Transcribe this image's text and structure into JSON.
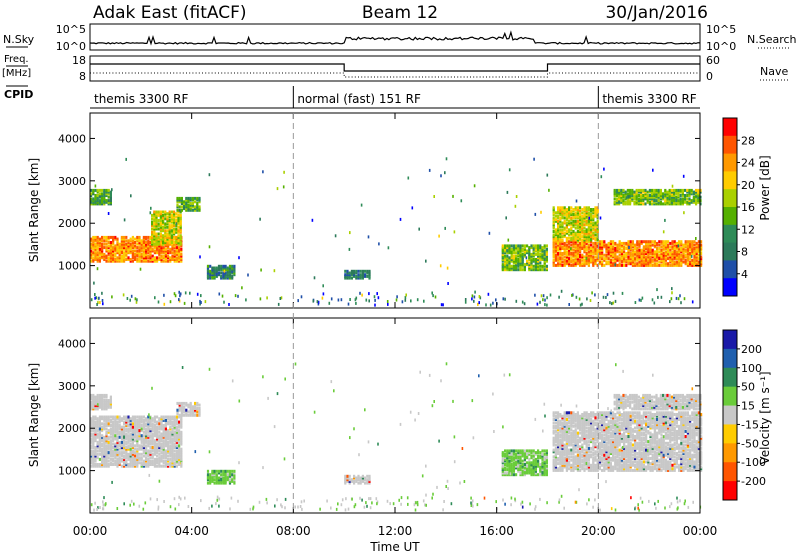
{
  "header": {
    "station": "Adak East (fitACF)",
    "beam": "Beam 12",
    "date": "30/Jan/2016"
  },
  "nsky": {
    "left_label": "N.Sky",
    "right_label": "N.Search",
    "left_ticks": [
      "10^5",
      "10^0"
    ],
    "right_ticks": [
      "10^5",
      "10^0"
    ]
  },
  "freq": {
    "left_label_line1": "Freq.",
    "left_label_line2": "[MHz]",
    "right_label": "Nave",
    "left_ticks": [
      "18",
      "8"
    ],
    "right_ticks": [
      "60",
      "0"
    ]
  },
  "cpid": {
    "label": "CPID",
    "segments": [
      {
        "text": "themis 3300 RF",
        "start_hour": 0,
        "end_hour": 8
      },
      {
        "text": "normal (fast) 151 RF",
        "start_hour": 8,
        "end_hour": 20
      },
      {
        "text": "themis 3300 RF",
        "start_hour": 20,
        "end_hour": 24
      }
    ]
  },
  "axes": {
    "ylabel": "Slant Range [km]",
    "xlabel": "Time UT",
    "x_tick_labels": [
      "00:00",
      "04:00",
      "08:00",
      "12:00",
      "16:00",
      "20:00",
      "00:00"
    ],
    "y_tick_labels": [
      "1000",
      "2000",
      "3000",
      "4000"
    ]
  },
  "colorbars": {
    "power": {
      "label": "Power [dB]",
      "ticks": [
        "28",
        "24",
        "20",
        "16",
        "12",
        "8",
        "4"
      ],
      "colors": [
        "#ff0000",
        "#ff5500",
        "#ff9900",
        "#ffcc00",
        "#aad000",
        "#55b000",
        "#2e8b57",
        "#2c7a5a",
        "#1f4fa8",
        "#0000ff"
      ]
    },
    "velocity": {
      "label": "Velocity [m s⁻¹]",
      "ticks": [
        "200",
        "100",
        "50",
        "15",
        "-15",
        "-50",
        "-100",
        "-200"
      ],
      "colors": [
        "#1a1aa8",
        "#1f5fae",
        "#2e8b57",
        "#6acc3a",
        "#c8c8c8",
        "#ffcc00",
        "#ff9900",
        "#ff5500",
        "#ff0000"
      ]
    }
  },
  "chart_data": [
    {
      "type": "heatmap",
      "panel": "power",
      "x_range_hours": [
        0,
        24
      ],
      "ylim_km": [
        0,
        4600
      ],
      "colorbar_label": "Power [dB]",
      "regions": [
        {
          "t0": 0.0,
          "t1": 3.6,
          "r0": 1100,
          "r1": 1700,
          "value_db": 24
        },
        {
          "t0": 2.4,
          "t1": 3.6,
          "r0": 1500,
          "r1": 2300,
          "value_db": 18
        },
        {
          "t0": 0.0,
          "t1": 0.8,
          "r0": 2450,
          "r1": 2800,
          "value_db": 12
        },
        {
          "t0": 3.4,
          "t1": 4.3,
          "r0": 2300,
          "r1": 2600,
          "value_db": 12
        },
        {
          "t0": 4.6,
          "t1": 5.7,
          "r0": 700,
          "r1": 1000,
          "value_db": 8
        },
        {
          "t0": 10.0,
          "t1": 11.0,
          "r0": 700,
          "r1": 900,
          "value_db": 6
        },
        {
          "t0": 16.2,
          "t1": 18.0,
          "r0": 900,
          "r1": 1500,
          "value_db": 14
        },
        {
          "t0": 18.2,
          "t1": 24.0,
          "r0": 1000,
          "r1": 1600,
          "value_db": 24
        },
        {
          "t0": 18.2,
          "t1": 20.0,
          "r0": 1600,
          "r1": 2400,
          "value_db": 18
        },
        {
          "t0": 20.6,
          "t1": 24.0,
          "r0": 2450,
          "r1": 2800,
          "value_db": 14
        }
      ]
    },
    {
      "type": "heatmap",
      "panel": "velocity",
      "x_range_hours": [
        0,
        24
      ],
      "ylim_km": [
        0,
        4600
      ],
      "colorbar_label": "Velocity [m s⁻¹]",
      "regions": [
        {
          "t0": 0.0,
          "t1": 3.6,
          "r0": 1100,
          "r1": 2300,
          "value_ms": 0
        },
        {
          "t0": 0.0,
          "t1": 0.8,
          "r0": 2450,
          "r1": 2800,
          "value_ms": 0
        },
        {
          "t0": 3.4,
          "t1": 4.3,
          "r0": 2300,
          "r1": 2600,
          "value_ms": 0
        },
        {
          "t0": 4.6,
          "t1": 5.7,
          "r0": 700,
          "r1": 1000,
          "value_ms": 40
        },
        {
          "t0": 10.0,
          "t1": 11.0,
          "r0": 700,
          "r1": 900,
          "value_ms": 0
        },
        {
          "t0": 16.2,
          "t1": 18.0,
          "r0": 900,
          "r1": 1500,
          "value_ms": 30
        },
        {
          "t0": 18.2,
          "t1": 24.0,
          "r0": 1000,
          "r1": 2400,
          "value_ms": 0
        },
        {
          "t0": 20.6,
          "t1": 24.0,
          "r0": 2450,
          "r1": 2800,
          "value_ms": 0
        }
      ]
    }
  ]
}
